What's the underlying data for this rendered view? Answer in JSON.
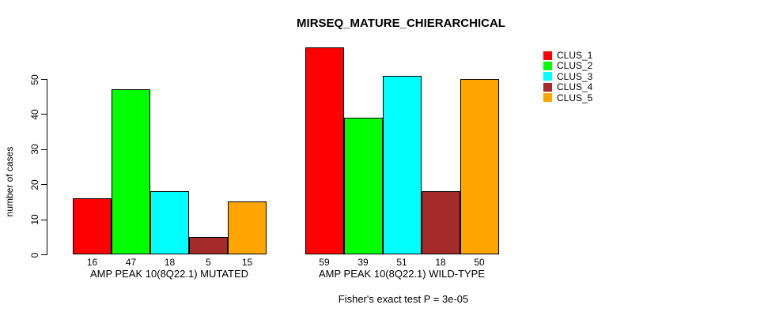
{
  "chart_data": {
    "type": "bar",
    "title": "MIRSEQ_MATURE_CHIERARCHICAL",
    "ylabel": "number of cases",
    "xlabel": "",
    "ylim": [
      0,
      50
    ],
    "yticks": [
      0,
      10,
      20,
      30,
      40,
      50
    ],
    "grid": false,
    "legend_position": "right",
    "series": [
      {
        "name": "CLUS_1",
        "color": "#FF0000"
      },
      {
        "name": "CLUS_2",
        "color": "#00FF00"
      },
      {
        "name": "CLUS_3",
        "color": "#00FFFF"
      },
      {
        "name": "CLUS_4",
        "color": "#A52A2A"
      },
      {
        "name": "CLUS_5",
        "color": "#FFA500"
      }
    ],
    "groups": [
      {
        "label": "AMP PEAK 10(8Q22.1) MUTATED",
        "values": [
          16,
          47,
          18,
          5,
          15
        ]
      },
      {
        "label": "AMP PEAK 10(8Q22.1) WILD-TYPE",
        "values": [
          59,
          39,
          51,
          18,
          50
        ]
      }
    ],
    "note": "Fisher's exact test P = 3e-05"
  }
}
